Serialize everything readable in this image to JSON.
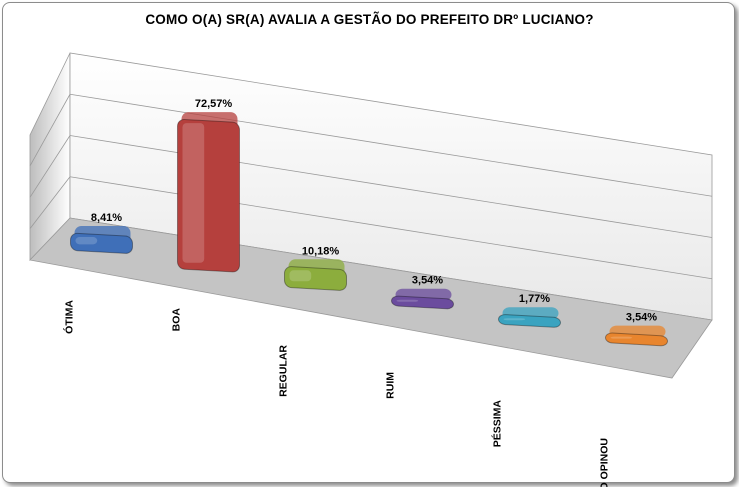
{
  "chart_data": {
    "type": "bar",
    "title": "COMO O(A) SR(A) AVALIA A GESTÃO DO PREFEITO DRº LUCIANO?",
    "categories": [
      "ÓTIMA",
      "BOA",
      "REGULAR",
      "RUIM",
      "PÉSSIMA",
      "NÃO OPINOU"
    ],
    "values": [
      8.41,
      72.57,
      10.18,
      3.54,
      1.77,
      3.54
    ],
    "value_labels": [
      "8,41%",
      "72,57%",
      "10,18%",
      "3,54%",
      "1,77%",
      "3,54%"
    ],
    "colors": [
      "#3f6fb8",
      "#b5403d",
      "#8cad3d",
      "#6b4c9e",
      "#3aa3c0",
      "#e8852e"
    ],
    "ylim": [
      0,
      80
    ],
    "grid": true,
    "legend": "none"
  }
}
